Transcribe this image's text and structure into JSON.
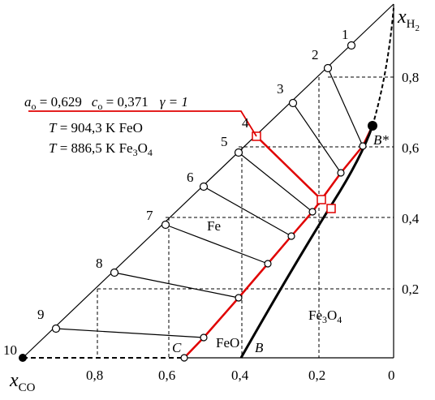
{
  "axes": {
    "x_label": "x",
    "x_label_sub": "CO",
    "y_label": "x",
    "y_label_sub": "H",
    "y_label_sub2": "2",
    "x_ticks": [
      "0,8",
      "0,6",
      "0,4",
      "0,2",
      "0"
    ],
    "y_ticks": [
      "0,8",
      "0,6",
      "0,4",
      "0,2"
    ]
  },
  "annotation": {
    "a": "a",
    "a_sub": "o",
    "a_value": " = 0,629",
    "c": "c",
    "c_sub": "o",
    "c_value": " = 0,371",
    "gamma": "γ = 1",
    "t1": "T",
    "t1_value": " = 904,3 K  FeO",
    "t2": "T",
    "t2_value": " = 886,5 K  Fe",
    "t2_sub1": "3",
    "t2_o": "O",
    "t2_sub2": "4"
  },
  "points": [
    "1",
    "2",
    "3",
    "4",
    "5",
    "6",
    "7",
    "8",
    "9",
    "10"
  ],
  "regions": {
    "fe": "Fe",
    "feo": "FeO",
    "fe3o4": "Fe",
    "fe3o4_sub1": "3",
    "fe3o4_o": "O",
    "fe3o4_sub2": "4"
  },
  "curves": {
    "b": "B",
    "c": "C",
    "b_star": "B*"
  }
}
